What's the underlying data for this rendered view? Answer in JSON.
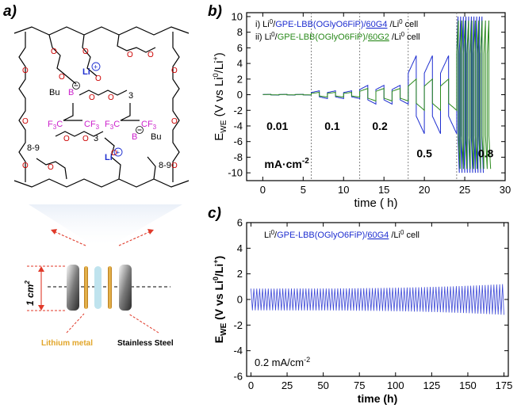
{
  "panels": {
    "a": "a)",
    "b": "b)",
    "c": "c)"
  },
  "schematic": {
    "li_label": "Li",
    "bu_label": "Bu",
    "b_label": "B",
    "cf3_label": "CF",
    "f3c_label": "F",
    "sub_3": "3",
    "sub_89": "8-9",
    "area_label": "1 cm",
    "area_sup": "2",
    "lithium_label": "Lithium metal",
    "steel_label": "Stainless Steel",
    "colors": {
      "li": "#1f2fd0",
      "fluoro": "#cc22cc",
      "oxygen": "#cc0000",
      "lithium": "#e2a62a",
      "separator": "#bfe3ee",
      "arrow": "#e03a2a"
    }
  },
  "chart_data": [
    {
      "id": "b",
      "type": "line",
      "xlabel": "time ( h)",
      "ylabel_main": "E",
      "ylabel_sub": "WE",
      "ylabel_rest": " (V vs Li",
      "ylabel_sup1": "0",
      "ylabel_rest2": "/Li",
      "ylabel_sup2": "+",
      "ylabel_end": ")",
      "xlim": [
        -2,
        30
      ],
      "ylim": [
        -11,
        10.5
      ],
      "xticks": [
        0,
        5,
        10,
        15,
        20,
        25,
        30
      ],
      "yticks": [
        -10,
        -8,
        -6,
        -4,
        -2,
        0,
        2,
        4,
        6,
        8,
        10
      ],
      "vlines": [
        6,
        12,
        18,
        24
      ],
      "current_labels": [
        {
          "text": "0.01",
          "x": 1.8,
          "y": -4.5
        },
        {
          "text": "0.1",
          "x": 8.6,
          "y": -4.5
        },
        {
          "text": "0.2",
          "x": 14.5,
          "y": -4.5
        },
        {
          "text": "0.5",
          "x": 20.0,
          "y": -8.0
        },
        {
          "text": "0.8",
          "x": 27.6,
          "y": -8.0
        }
      ],
      "unit_label": "mA·cm",
      "unit_sup": "-2",
      "legend": [
        {
          "prefix": "i) Li",
          "sup": "0",
          "slash": "/",
          "name": "GPE-LBB(OGlyO6FiP)/",
          "underlined": "60G4",
          "suffix": " /Li",
          "sup2": "0",
          "end": " cell",
          "color": "#1f2fd0"
        },
        {
          "prefix": "ii) Li",
          "sup": "0",
          "slash": "/",
          "name": "GPE-LBB(OGlyO6FiP)/",
          "underlined": "60G2",
          "suffix": " /Li",
          "sup2": "0",
          "end": " cell",
          "color": "#2a8a1c"
        }
      ],
      "series": [
        {
          "name": "60G4",
          "color": "#1f2fd0",
          "stages": [
            {
              "start": 0,
              "end": 6,
              "cycles": 3,
              "amp": 0.05
            },
            {
              "start": 6,
              "end": 12,
              "cycles": 3,
              "amp": 0.5
            },
            {
              "start": 12,
              "end": 18,
              "cycles": 3,
              "amp": 1.2
            },
            {
              "start": 18,
              "end": 24,
              "cycles": 3,
              "amp": 5.0
            },
            {
              "start": 24,
              "end": 27.3,
              "cycles": 10,
              "amp": 10.0
            }
          ]
        },
        {
          "name": "60G2",
          "color": "#2a8a1c",
          "stages": [
            {
              "start": 0,
              "end": 6,
              "cycles": 3,
              "amp": 0.03
            },
            {
              "start": 6,
              "end": 12,
              "cycles": 3,
              "amp": 0.3
            },
            {
              "start": 12,
              "end": 18,
              "cycles": 3,
              "amp": 0.8
            },
            {
              "start": 18,
              "end": 24,
              "cycles": 3,
              "amp": 2.0
            },
            {
              "start": 24,
              "end": 28.2,
              "cycles": 10,
              "amp": 9.5
            }
          ]
        }
      ]
    },
    {
      "id": "c",
      "type": "line",
      "xlabel": "time (h)",
      "ylabel_main": "E",
      "ylabel_sub": "WE",
      "ylabel_rest": " (V vs Li",
      "ylabel_sup1": "0",
      "ylabel_rest2": "/Li",
      "ylabel_sup2": "+",
      "ylabel_end": ")",
      "xlim": [
        -3,
        178
      ],
      "ylim": [
        -6,
        6
      ],
      "xticks": [
        0,
        25,
        50,
        75,
        100,
        125,
        150,
        175
      ],
      "yticks": [
        -6,
        -4,
        -2,
        0,
        2,
        4,
        6
      ],
      "legend": {
        "prefix": "Li",
        "sup": "0",
        "slash": "/",
        "name": "GPE-LBB(OGlyO6FiP)/",
        "underlined": "60G4",
        "suffix": " /Li",
        "sup2": "0",
        "end": " cell",
        "color": "#1f2fd0"
      },
      "current_label": "0.2 mA/cm",
      "current_sup": "-2",
      "series": [
        {
          "name": "60G4",
          "color": "#3a46d6",
          "start": 0,
          "end": 175,
          "period": 2,
          "amp_start": 0.85,
          "amp_end": 1.2
        }
      ]
    }
  ]
}
